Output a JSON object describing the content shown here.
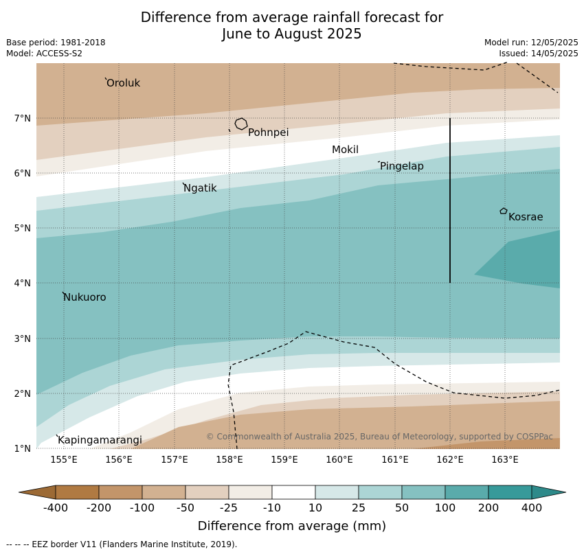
{
  "title_line1": "Difference from average rainfall forecast for",
  "title_line2": "June to August 2025",
  "meta_left": {
    "base_period": "Base period: 1981-2018",
    "model": "Model: ACCESS-S2"
  },
  "meta_right": {
    "model_run": "Model run: 12/05/2025",
    "issued": "Issued: 14/05/2025"
  },
  "copyright": "© Commonwealth of Australia 2025, Bureau of Meteorology, supported by COSPPac",
  "lon_ticks": [
    "155°E",
    "156°E",
    "157°E",
    "158°E",
    "159°E",
    "160°E",
    "161°E",
    "162°E",
    "163°E"
  ],
  "lat_ticks": [
    "1°N",
    "2°N",
    "3°N",
    "4°N",
    "5°N",
    "6°N",
    "7°N"
  ],
  "places": [
    "Oroluk",
    "Pohnpei",
    "Mokil",
    "Pingelap",
    "Ngatik",
    "Kosrae",
    "Nukuoro",
    "Kapingamarangi"
  ],
  "legend": {
    "labels": [
      "-400",
      "-200",
      "-100",
      "-50",
      "-25",
      "-10",
      "10",
      "25",
      "50",
      "100",
      "200",
      "400"
    ],
    "colors": [
      "#b07a42",
      "#c3956a",
      "#d2b191",
      "#e3d0bf",
      "#f2ede6",
      "#ffffff",
      "#d6e8e8",
      "#acd5d5",
      "#85c1c1",
      "#5aabab",
      "#379a9a"
    ],
    "title": "Difference from average (mm)"
  },
  "footnote": "--  --  -- EEZ border V11 (Flanders Marine Institute, 2019)."
}
